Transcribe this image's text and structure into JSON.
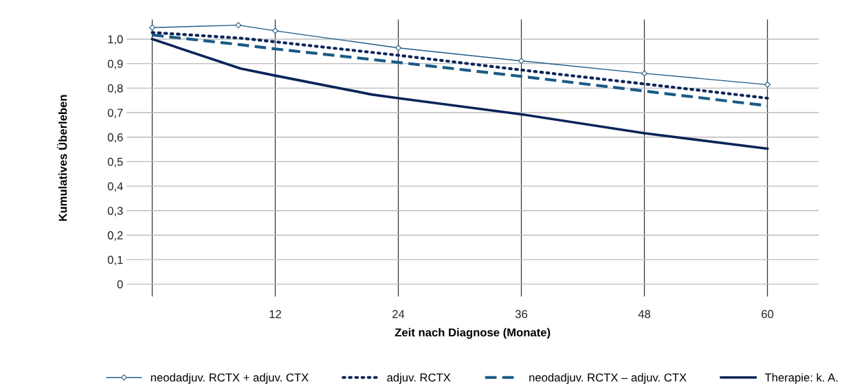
{
  "chart_data": {
    "type": "line",
    "xlabel": "Zeit nach Diagnose (Monate)",
    "ylabel": "Kumulatives Überleben",
    "xlim": [
      -2.5,
      65
    ],
    "xticks": [
      {
        "value": 0,
        "label": null
      },
      12,
      24,
      36,
      48,
      60
    ],
    "ylim": [
      -0.05,
      1.08
    ],
    "yticks": [
      {
        "value": 0,
        "label": "0"
      },
      {
        "value": 0.1,
        "label": "0,1"
      },
      {
        "value": 0.2,
        "label": "0,2"
      },
      {
        "value": 0.3,
        "label": "0,3"
      },
      {
        "value": 0.4,
        "label": "0,4"
      },
      {
        "value": 0.5,
        "label": "0,5"
      },
      {
        "value": 0.6,
        "label": "0,6"
      },
      {
        "value": 0.7,
        "label": "0,7"
      },
      {
        "value": 0.8,
        "label": "0,8"
      },
      {
        "value": 0.9,
        "label": "0,9"
      },
      {
        "value": 1.0,
        "label": "1,0"
      }
    ],
    "grid": true,
    "legend": "bottom",
    "series": [
      {
        "name": "neodadjuv. RCTX + adjuv. CTX",
        "color": "#1f5a85",
        "marker": "diamond",
        "line_style": "solid",
        "x": [
          0,
          8.4,
          12,
          24,
          36,
          48,
          60
        ],
        "values": [
          1.047,
          1.057,
          1.034,
          0.964,
          0.911,
          0.86,
          0.814
        ]
      },
      {
        "name": "adjuv. RCTX",
        "color": "#0a2458",
        "marker": "none",
        "line_style": "dotted",
        "x": [
          0,
          8.6,
          12,
          24,
          36,
          48,
          60
        ],
        "values": [
          1.027,
          1.004,
          0.989,
          0.934,
          0.874,
          0.817,
          0.759
        ]
      },
      {
        "name": "neodadjuv. RCTX – adjuv. CTX",
        "color": "#1b5a87",
        "marker": "none",
        "line_style": "dashed",
        "x": [
          0,
          8.6,
          12,
          24,
          36,
          48,
          60
        ],
        "values": [
          1.017,
          0.977,
          0.96,
          0.905,
          0.848,
          0.788,
          0.728
        ]
      },
      {
        "name": "Therapie: k. A.",
        "color": "#0a2458",
        "marker": "none",
        "line_style": "solid",
        "x": [
          0,
          8.6,
          12,
          21.4,
          24,
          36,
          48,
          60
        ],
        "values": [
          1.0,
          0.88,
          0.851,
          0.774,
          0.759,
          0.693,
          0.616,
          0.553
        ]
      }
    ]
  }
}
